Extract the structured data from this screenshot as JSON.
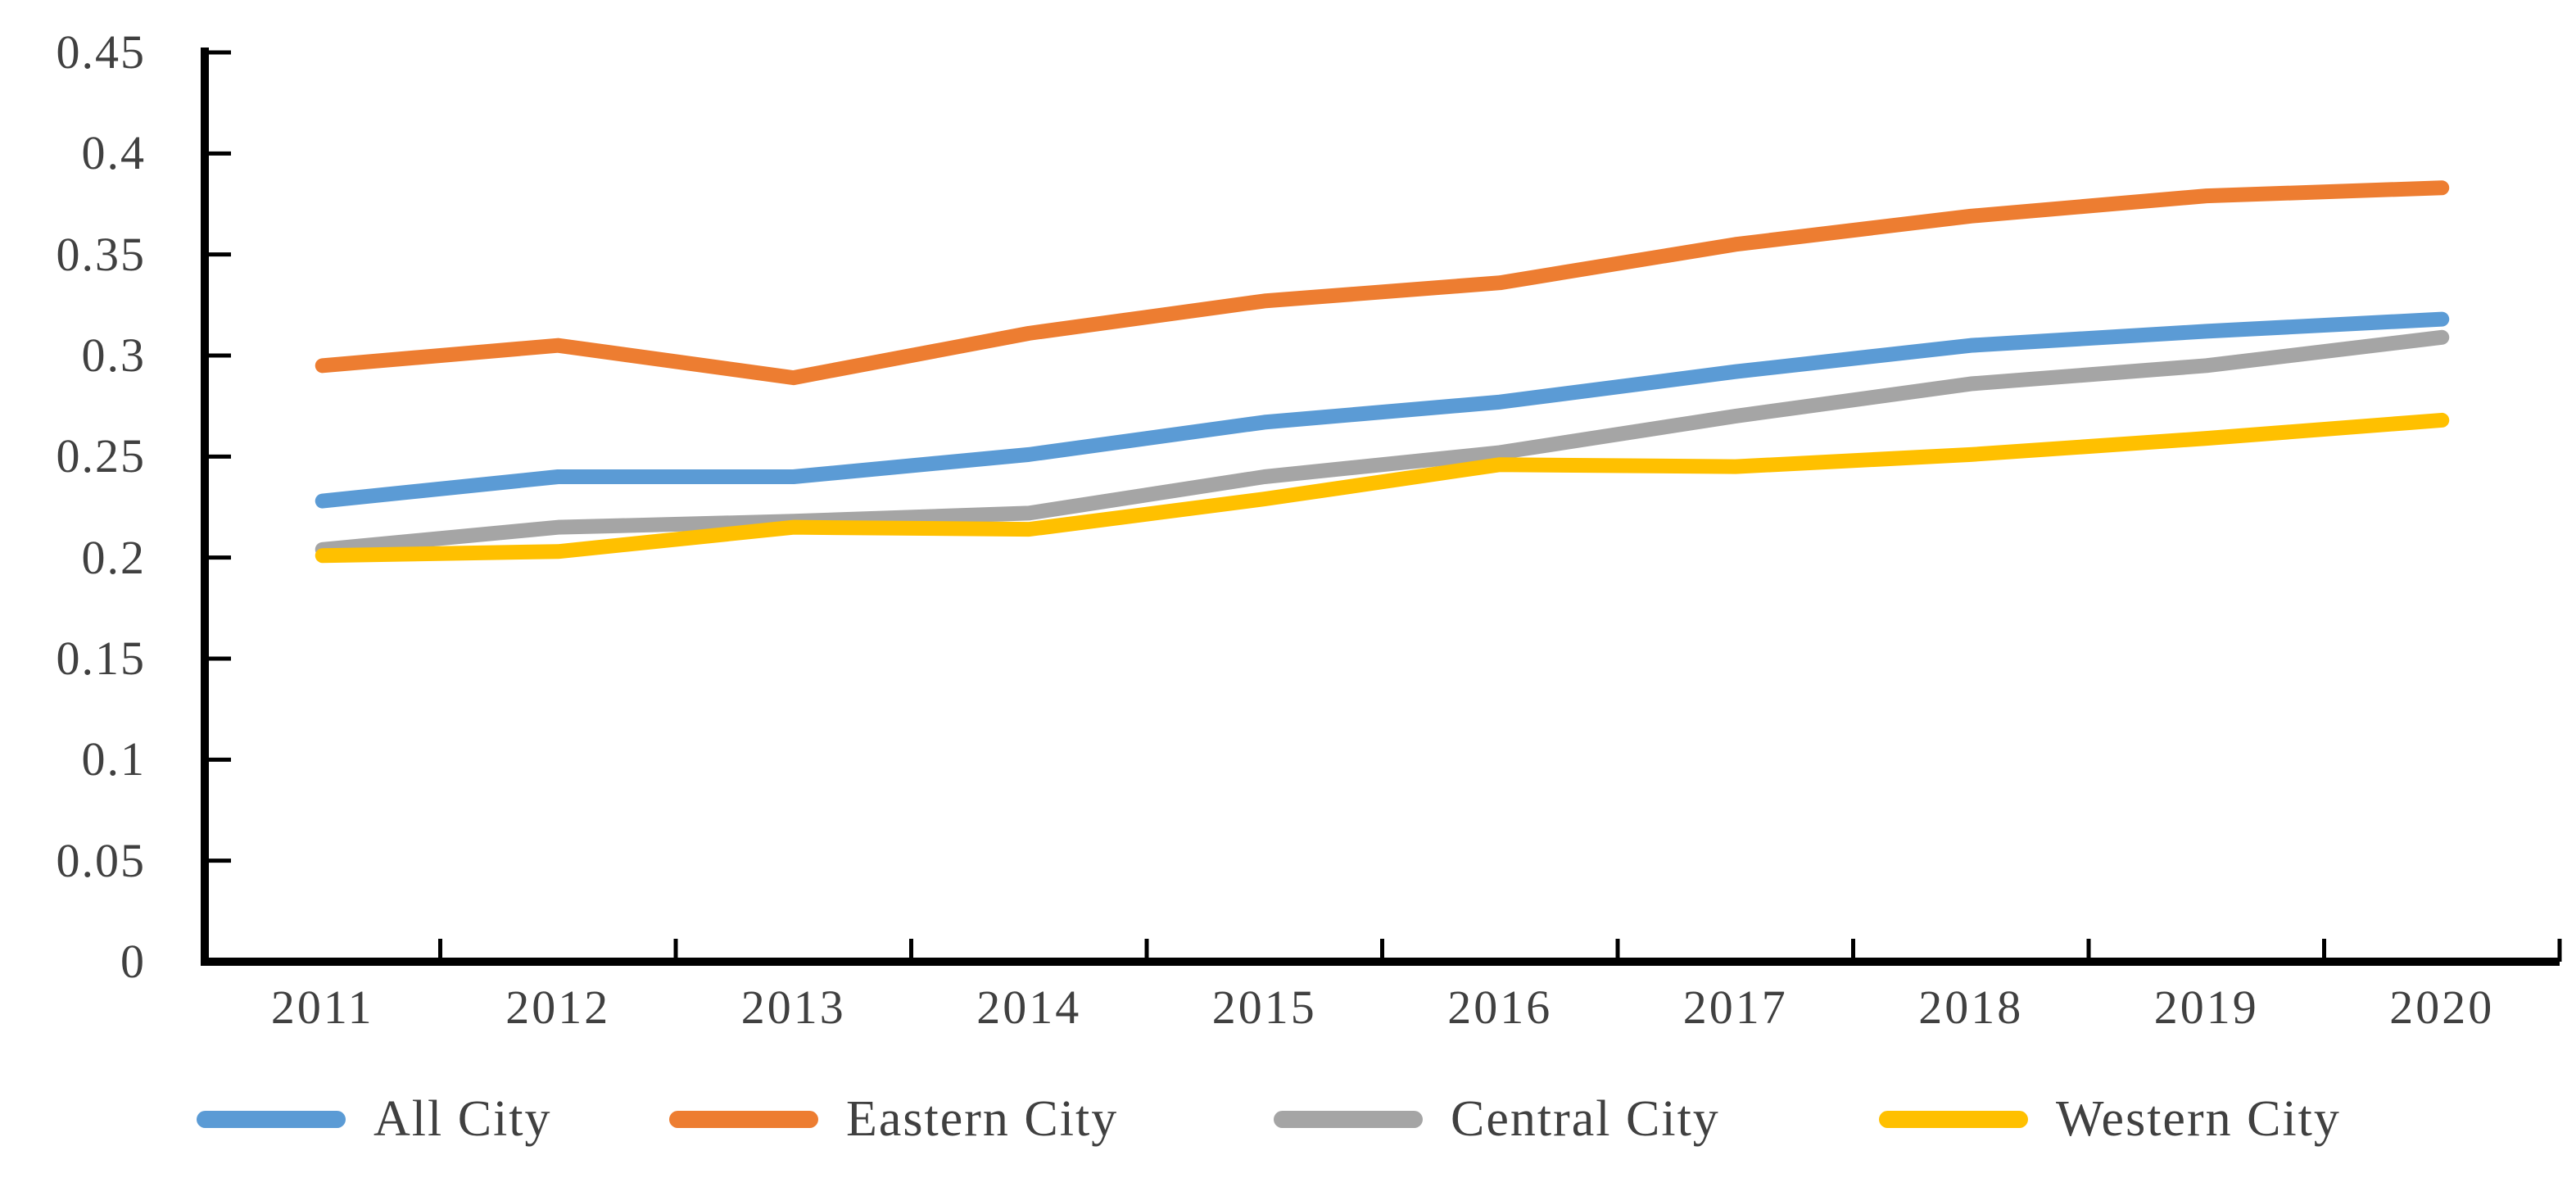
{
  "chart_data": {
    "type": "line",
    "title": "",
    "xlabel": "",
    "ylabel": "",
    "categories": [
      "2011",
      "2012",
      "2013",
      "2014",
      "2015",
      "2016",
      "2017",
      "2018",
      "2019",
      "2020"
    ],
    "series": [
      {
        "name": "All City",
        "color": "#5B9BD5",
        "values": [
          0.228,
          0.24,
          0.24,
          0.251,
          0.267,
          0.277,
          0.292,
          0.305,
          0.312,
          0.318
        ]
      },
      {
        "name": "Eastern City",
        "color": "#ED7D31",
        "values": [
          0.295,
          0.305,
          0.289,
          0.311,
          0.327,
          0.336,
          0.355,
          0.369,
          0.379,
          0.383
        ]
      },
      {
        "name": "Central City",
        "color": "#A5A5A5",
        "values": [
          0.204,
          0.215,
          0.218,
          0.222,
          0.24,
          0.252,
          0.27,
          0.286,
          0.295,
          0.309
        ]
      },
      {
        "name": "Western City",
        "color": "#FFC000",
        "values": [
          0.201,
          0.203,
          0.215,
          0.214,
          0.229,
          0.246,
          0.245,
          0.251,
          0.259,
          0.268
        ]
      }
    ],
    "y_tick_labels": [
      "0.45",
      "0.4",
      "0.35",
      "0.3",
      "0.25",
      "0.2",
      "0.15",
      "0.1",
      "0.05",
      "0"
    ],
    "y_tick_values": [
      0.45,
      0.4,
      0.35,
      0.3,
      0.25,
      0.2,
      0.15,
      0.1,
      0.05,
      0
    ],
    "ylim": [
      0,
      0.45
    ],
    "grid": false,
    "legend_position": "bottom",
    "axis_color": "#000000",
    "label_color": "#404040",
    "tick_orientation": "inside"
  }
}
